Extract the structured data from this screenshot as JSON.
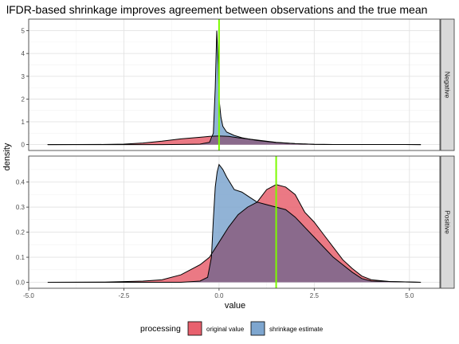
{
  "chart_data": {
    "type": "area",
    "title": "lFDR-based shrinkage improves agreement between observations and the true mean",
    "xlabel": "value",
    "ylabel": "density",
    "xlim": [
      -5,
      5.8
    ],
    "x_ticks": [
      -5.0,
      -2.5,
      0.0,
      2.5,
      5.0
    ],
    "x_tick_labels": [
      "-5.0",
      "-2.5",
      "0.0",
      "2.5",
      "5.0"
    ],
    "grid": true,
    "legend": {
      "title": "processing",
      "position": "bottom",
      "entries": [
        {
          "label": "original value",
          "color": "#e8616e"
        },
        {
          "label": "shrinkage estimate",
          "color": "#7ea6cf"
        }
      ]
    },
    "reference_line_color": "#7cfc00",
    "overlap_color": "#8a6a8c",
    "facets": [
      {
        "label": "Negative",
        "true_mean": 0.0,
        "ylim": [
          0,
          5.25
        ],
        "y_ticks": [
          0,
          1,
          2,
          3,
          4,
          5
        ],
        "y_tick_labels": [
          "0",
          "1",
          "2",
          "3",
          "4",
          "5"
        ],
        "series": [
          {
            "name": "original value",
            "points": [
              [
                -4.5,
                0.0
              ],
              [
                -3.0,
                0.005
              ],
              [
                -2.5,
                0.02
              ],
              [
                -2.0,
                0.07
              ],
              [
                -1.5,
                0.15
              ],
              [
                -1.0,
                0.25
              ],
              [
                -0.5,
                0.32
              ],
              [
                -0.25,
                0.36
              ],
              [
                0.0,
                0.38
              ],
              [
                0.25,
                0.36
              ],
              [
                0.5,
                0.3
              ],
              [
                1.0,
                0.2
              ],
              [
                1.5,
                0.1
              ],
              [
                2.0,
                0.04
              ],
              [
                2.5,
                0.01
              ],
              [
                3.0,
                0.003
              ],
              [
                5.3,
                0.0
              ]
            ]
          },
          {
            "name": "shrinkage estimate",
            "points": [
              [
                -4.5,
                0.0
              ],
              [
                -1.5,
                0.0
              ],
              [
                -1.0,
                0.005
              ],
              [
                -0.5,
                0.02
              ],
              [
                -0.25,
                0.1
              ],
              [
                -0.15,
                0.5
              ],
              [
                -0.1,
                2.5
              ],
              [
                -0.06,
                5.0
              ],
              [
                -0.02,
                3.5
              ],
              [
                0.0,
                2.0
              ],
              [
                0.05,
                1.2
              ],
              [
                0.1,
                0.8
              ],
              [
                0.2,
                0.55
              ],
              [
                0.4,
                0.4
              ],
              [
                0.6,
                0.3
              ],
              [
                1.0,
                0.18
              ],
              [
                1.5,
                0.09
              ],
              [
                2.0,
                0.04
              ],
              [
                2.5,
                0.012
              ],
              [
                3.0,
                0.003
              ],
              [
                5.3,
                0.0
              ]
            ]
          }
        ]
      },
      {
        "label": "Positive",
        "true_mean": 1.5,
        "ylim": [
          0,
          0.48
        ],
        "y_ticks": [
          0.0,
          0.1,
          0.2,
          0.3,
          0.4
        ],
        "y_tick_labels": [
          "0.0",
          "0.1",
          "0.2",
          "0.3",
          "0.4"
        ],
        "series": [
          {
            "name": "original value",
            "points": [
              [
                -4.5,
                0.0
              ],
              [
                -3.0,
                0.001
              ],
              [
                -2.0,
                0.005
              ],
              [
                -1.5,
                0.01
              ],
              [
                -1.0,
                0.03
              ],
              [
                -0.5,
                0.07
              ],
              [
                -0.25,
                0.1
              ],
              [
                0.0,
                0.16
              ],
              [
                0.25,
                0.22
              ],
              [
                0.5,
                0.27
              ],
              [
                0.75,
                0.3
              ],
              [
                1.0,
                0.32
              ],
              [
                1.25,
                0.37
              ],
              [
                1.5,
                0.39
              ],
              [
                1.75,
                0.38
              ],
              [
                2.0,
                0.35
              ],
              [
                2.25,
                0.28
              ],
              [
                2.5,
                0.24
              ],
              [
                2.75,
                0.19
              ],
              [
                3.0,
                0.14
              ],
              [
                3.25,
                0.09
              ],
              [
                3.5,
                0.055
              ],
              [
                3.75,
                0.025
              ],
              [
                4.0,
                0.01
              ],
              [
                4.5,
                0.003
              ],
              [
                5.3,
                0.0
              ]
            ]
          },
          {
            "name": "shrinkage estimate",
            "points": [
              [
                -4.5,
                0.0
              ],
              [
                -1.0,
                0.0
              ],
              [
                -0.5,
                0.005
              ],
              [
                -0.3,
                0.02
              ],
              [
                -0.2,
                0.1
              ],
              [
                -0.15,
                0.25
              ],
              [
                -0.1,
                0.38
              ],
              [
                -0.05,
                0.44
              ],
              [
                0.0,
                0.47
              ],
              [
                0.1,
                0.45
              ],
              [
                0.2,
                0.42
              ],
              [
                0.4,
                0.37
              ],
              [
                0.6,
                0.36
              ],
              [
                0.8,
                0.34
              ],
              [
                1.0,
                0.32
              ],
              [
                1.25,
                0.31
              ],
              [
                1.5,
                0.3
              ],
              [
                1.75,
                0.29
              ],
              [
                2.0,
                0.26
              ],
              [
                2.25,
                0.22
              ],
              [
                2.5,
                0.18
              ],
              [
                2.75,
                0.14
              ],
              [
                3.0,
                0.1
              ],
              [
                3.25,
                0.07
              ],
              [
                3.5,
                0.04
              ],
              [
                3.75,
                0.015
              ],
              [
                4.0,
                0.005
              ],
              [
                5.3,
                0.0
              ]
            ]
          }
        ]
      }
    ]
  }
}
